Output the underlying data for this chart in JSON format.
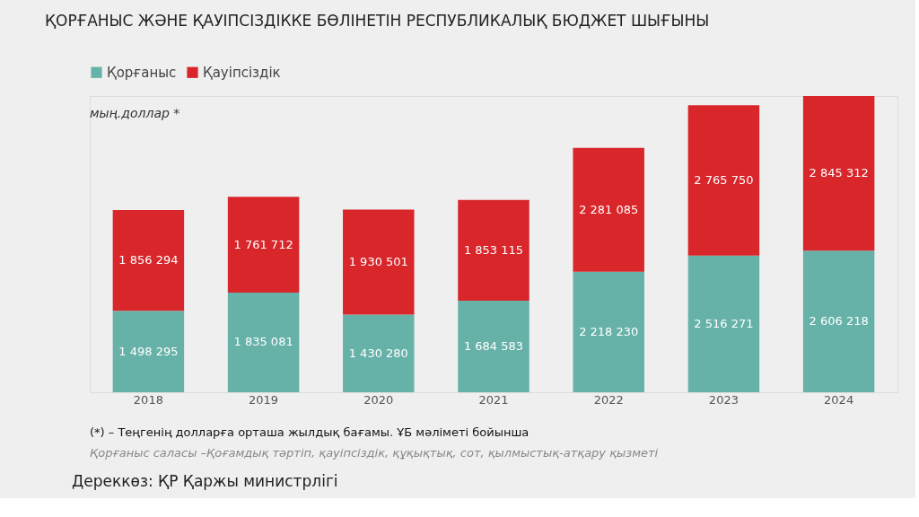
{
  "chart_data": {
    "type": "bar",
    "stacked": true,
    "title": "ҚОРҒАНЫС ЖӘНЕ ҚАУІПСІЗДІККЕ БӨЛІНЕТІН РЕСПУБЛИКАЛЫҚ БЮДЖЕТ ШЫҒЫНЫ",
    "categories": [
      "2018",
      "2019",
      "2020",
      "2021",
      "2022",
      "2023",
      "2024"
    ],
    "series": [
      {
        "name": "Қорғаныс",
        "color": "#66b2a8",
        "values": [
          1498295,
          1835081,
          1430280,
          1684583,
          2218230,
          2516271,
          2606218
        ],
        "value_labels": [
          "1 498 295",
          "1 835 081",
          "1 430 280",
          "1 684 583",
          "2 218 230",
          "2 516 271",
          "2 606 218"
        ]
      },
      {
        "name": "Қауіпсіздік",
        "color": "#d9262a",
        "values": [
          1856294,
          1761712,
          1930501,
          1853115,
          2281085,
          2765750,
          2845312
        ],
        "value_labels": [
          "1 856 294",
          "1 761 712",
          "1 930 501",
          "1 853 115",
          "2 281 085",
          "2 765 750",
          "2 845 312"
        ]
      }
    ],
    "legend": "top",
    "grid": false,
    "annotations": [
      "мың.доллар *",
      "(*) – Теңгенің долларға орташа жылдық бағамы. ҰБ мәліметі бойынша",
      "Қорғаныс саласы –Қоғамдық тәртіп, қауіпсіздік, құқықтық, сот, қылмыстық-атқару қызметі",
      "Дереккөз: ҚР Қаржы министрлігі"
    ]
  }
}
